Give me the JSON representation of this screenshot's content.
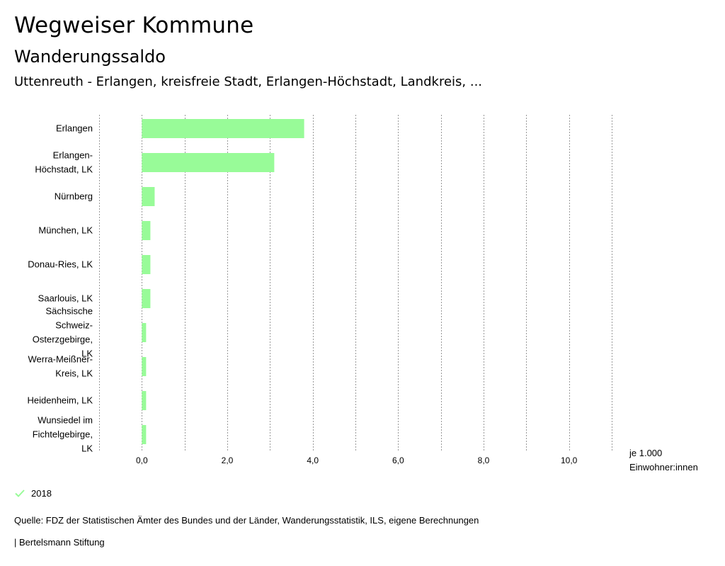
{
  "header": {
    "title": "Wegweiser Kommune",
    "subtitle": "Wanderungssaldo",
    "context": "Uttenreuth - Erlangen, kreisfreie Stadt, Erlangen-Höchstadt, Landkreis, ..."
  },
  "chart_data": {
    "type": "bar",
    "orientation": "horizontal",
    "categories": [
      "Erlangen",
      "Erlangen-Höchstadt, LK",
      "Nürnberg",
      "München, LK",
      "Donau-Ries, LK",
      "Saarlouis, LK",
      "Sächsische Schweiz-Osterzgebirge, LK",
      "Werra-Meißner-Kreis, LK",
      "Heidenheim, LK",
      "Wunsiedel im Fichtelgebirge, LK"
    ],
    "category_lines": [
      [
        "Erlangen"
      ],
      [
        "Erlangen-",
        "Höchstadt, LK"
      ],
      [
        "Nürnberg"
      ],
      [
        "München, LK"
      ],
      [
        "Donau-Ries, LK"
      ],
      [
        "Saarlouis, LK"
      ],
      [
        "Sächsische",
        "Schweiz-",
        "Osterzgebirge,",
        "LK"
      ],
      [
        "Werra-Meißner-",
        "Kreis, LK"
      ],
      [
        "Heidenheim, LK"
      ],
      [
        "Wunsiedel im",
        "Fichtelgebirge,",
        "LK"
      ]
    ],
    "series": [
      {
        "name": "2018",
        "values": [
          3.8,
          3.1,
          0.3,
          0.2,
          0.2,
          0.2,
          0.1,
          0.1,
          0.1,
          0.1
        ]
      }
    ],
    "xlim": [
      -1.0,
      11.0
    ],
    "xticks": [
      0,
      2,
      4,
      6,
      8,
      10
    ],
    "xtick_labels": [
      "0,0",
      "2,0",
      "4,0",
      "6,0",
      "8,0",
      "10,0"
    ],
    "grid_lines": [
      -1,
      0,
      1,
      2,
      3,
      4,
      5,
      6,
      7,
      8,
      9,
      10,
      11
    ],
    "xlabel": "je 1.000 Einwohner:innen",
    "bar_color": "#98fb98",
    "grid": true,
    "legend": "bottom-left"
  },
  "legend": {
    "label": "2018",
    "color": "#98fb98"
  },
  "unit": {
    "line1": "je 1.000",
    "line2": "Einwohner:innen"
  },
  "footer": {
    "source": "Quelle: FDZ der Statistischen Ämter des Bundes und der Länder, Wanderungsstatistik, ILS, eigene Berechnungen",
    "credit": "| Bertelsmann Stiftung"
  }
}
